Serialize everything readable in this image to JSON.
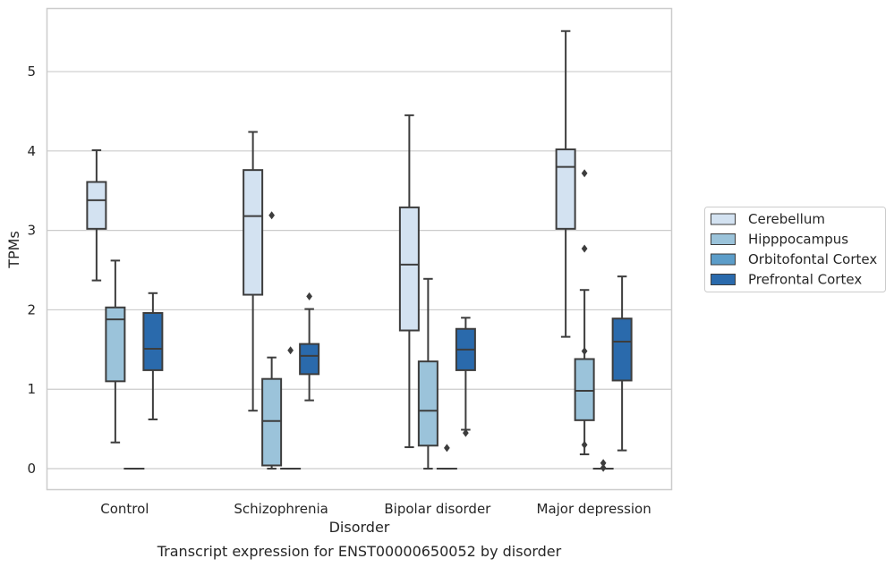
{
  "chart_data": {
    "type": "box",
    "title": "",
    "caption": "Transcript expression for ENST00000650052 by disorder",
    "xlabel": "Disorder",
    "ylabel": "TPMs",
    "ylim": [
      -0.27,
      5.8
    ],
    "yticks": [
      0,
      1,
      2,
      3,
      4,
      5
    ],
    "grid": "horizontal",
    "legend_position": "right",
    "categories": [
      "Control",
      "Schizophrenia",
      "Bipolar disorder",
      "Major depression"
    ],
    "series": [
      {
        "name": "Cerebellum",
        "color": "#d3e2f1",
        "boxes": [
          {
            "whislo": 2.37,
            "q1": 3.02,
            "med": 3.38,
            "q3": 3.61,
            "whishi": 4.01,
            "fliers": []
          },
          {
            "whislo": 0.73,
            "q1": 2.19,
            "med": 3.18,
            "q3": 3.76,
            "whishi": 4.24,
            "fliers": []
          },
          {
            "whislo": 0.27,
            "q1": 1.74,
            "med": 2.57,
            "q3": 3.29,
            "whishi": 4.45,
            "fliers": []
          },
          {
            "whislo": 1.66,
            "q1": 3.02,
            "med": 3.8,
            "q3": 4.02,
            "whishi": 5.51,
            "fliers": []
          }
        ]
      },
      {
        "name": "Hipppocampus",
        "color": "#9bc3da",
        "boxes": [
          {
            "whislo": 0.33,
            "q1": 1.1,
            "med": 1.88,
            "q3": 2.03,
            "whishi": 2.62,
            "fliers": []
          },
          {
            "whislo": 0.0,
            "q1": 0.04,
            "med": 0.6,
            "q3": 1.13,
            "whishi": 1.4,
            "fliers": [
              3.19
            ]
          },
          {
            "whislo": 0.0,
            "q1": 0.29,
            "med": 0.73,
            "q3": 1.35,
            "whishi": 2.39,
            "fliers": []
          },
          {
            "whislo": 0.18,
            "q1": 0.61,
            "med": 0.98,
            "q3": 1.38,
            "whishi": 2.25,
            "fliers": [
              3.72,
              2.77,
              1.48,
              0.3
            ]
          }
        ]
      },
      {
        "name": "Orbitofontal Cortex",
        "color": "#5c9dc9",
        "boxes": [
          {
            "whislo": 0.0,
            "q1": 0.0,
            "med": 0.0,
            "q3": 0.0,
            "whishi": 0.0,
            "fliers": []
          },
          {
            "whislo": 0.0,
            "q1": 0.0,
            "med": 0.0,
            "q3": 0.0,
            "whishi": 0.0,
            "fliers": [
              1.49
            ]
          },
          {
            "whislo": 0.0,
            "q1": 0.0,
            "med": 0.0,
            "q3": 0.0,
            "whishi": 0.0,
            "fliers": [
              0.26
            ]
          },
          {
            "whislo": 0.0,
            "q1": 0.0,
            "med": 0.0,
            "q3": 0.0,
            "whishi": 0.0,
            "fliers": [
              0.07,
              0.01
            ]
          }
        ]
      },
      {
        "name": "Prefrontal Cortex",
        "color": "#2a6aac",
        "boxes": [
          {
            "whislo": 0.62,
            "q1": 1.24,
            "med": 1.51,
            "q3": 1.96,
            "whishi": 2.21,
            "fliers": []
          },
          {
            "whislo": 0.86,
            "q1": 1.19,
            "med": 1.42,
            "q3": 1.57,
            "whishi": 2.01,
            "fliers": [
              2.17
            ]
          },
          {
            "whislo": 0.49,
            "q1": 1.24,
            "med": 1.5,
            "q3": 1.76,
            "whishi": 1.9,
            "fliers": [
              0.45
            ]
          },
          {
            "whislo": 0.23,
            "q1": 1.11,
            "med": 1.6,
            "q3": 1.89,
            "whishi": 2.42,
            "fliers": []
          }
        ]
      }
    ]
  }
}
